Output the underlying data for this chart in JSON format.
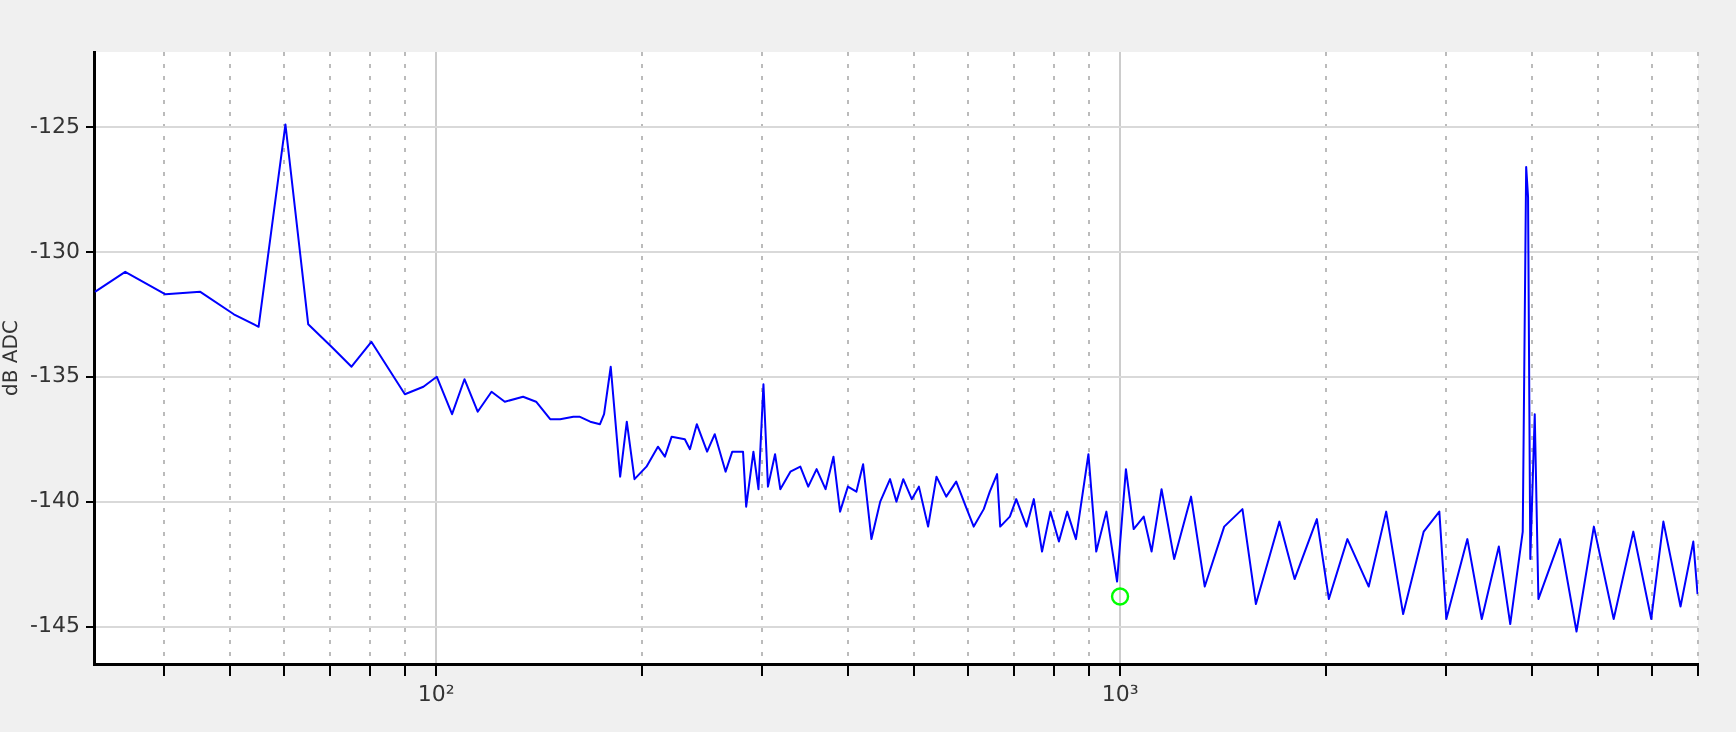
{
  "chart_data": {
    "type": "line",
    "ylabel": "dB ADC",
    "log": "x",
    "grid": true,
    "legend": false,
    "xlim": [
      31.6,
      7000
    ],
    "ylim": [
      -146.5,
      -122
    ],
    "xticks": [
      {
        "value": 40,
        "label": null
      },
      {
        "value": 50,
        "label": null
      },
      {
        "value": 60,
        "label": null
      },
      {
        "value": 70,
        "label": null
      },
      {
        "value": 80,
        "label": null
      },
      {
        "value": 90,
        "label": null
      },
      {
        "value": 100,
        "label": "10²"
      },
      {
        "value": 200,
        "label": null
      },
      {
        "value": 300,
        "label": null
      },
      {
        "value": 400,
        "label": null
      },
      {
        "value": 500,
        "label": null
      },
      {
        "value": 600,
        "label": null
      },
      {
        "value": 700,
        "label": null
      },
      {
        "value": 800,
        "label": null
      },
      {
        "value": 900,
        "label": null
      },
      {
        "value": 1000,
        "label": "10³"
      },
      {
        "value": 2000,
        "label": null
      },
      {
        "value": 3000,
        "label": null
      },
      {
        "value": 4000,
        "label": null
      },
      {
        "value": 5000,
        "label": null
      },
      {
        "value": 6000,
        "label": null
      },
      {
        "value": 7000,
        "label": null
      }
    ],
    "yticks": [
      -145,
      -140,
      -135,
      -130,
      -125
    ],
    "series": [
      {
        "type": "line",
        "color": "#0000ff",
        "marker": "none",
        "x": [
          31.7,
          35.1,
          40.2,
          45.2,
          50.6,
          55,
          60.2,
          65,
          70.3,
          75.2,
          80.4,
          90,
          95.8,
          100.2,
          105.5,
          110,
          115,
          120.5,
          126,
          134,
          140,
          146.8,
          151.8,
          158.7,
          162,
          168,
          173.6,
          176,
          180,
          185.8,
          190,
          195,
          203,
          211,
          216,
          221,
          231,
          235,
          240.5,
          249,
          255.5,
          265,
          271,
          281,
          284,
          291,
          296,
          301,
          305.6,
          313,
          318.6,
          329.6,
          340.8,
          350,
          360,
          371,
          381,
          389.6,
          400,
          411.6,
          421,
          433,
          446,
          461,
          471,
          482,
          496,
          508,
          524,
          539,
          557,
          576,
          595,
          611,
          632,
          645,
          661,
          668,
          690,
          705,
          730,
          748,
          769,
          791,
          814,
          837,
          862,
          899,
          923,
          955,
          990,
          1020,
          1047,
          1083,
          1112,
          1138,
          1150,
          1200,
          1270,
          1330,
          1420,
          1510,
          1580,
          1710,
          1800,
          1940,
          2020,
          2150,
          2310,
          2450,
          2594,
          2780,
          2930,
          3000,
          3220,
          3380,
          3580,
          3720,
          3880,
          3925,
          3950,
          3980,
          4040,
          4090,
          4400,
          4650,
          4930,
          5270,
          5630,
          5980,
          6230,
          6600,
          6890,
          6990
        ],
        "values": [
          -131.6,
          -130.8,
          -131.7,
          -131.6,
          -132.5,
          -133,
          -124.9,
          -132.9,
          -133.8,
          -134.6,
          -133.6,
          -135.7,
          -135.4,
          -135,
          -136.5,
          -135.1,
          -136.4,
          -135.6,
          -136,
          -135.8,
          -136,
          -136.7,
          -136.7,
          -136.6,
          -136.6,
          -136.8,
          -136.9,
          -136.5,
          -134.6,
          -139,
          -136.8,
          -139.1,
          -138.6,
          -137.8,
          -138.2,
          -137.4,
          -137.5,
          -137.9,
          -136.9,
          -138,
          -137.3,
          -138.8,
          -138,
          -138,
          -140.2,
          -138,
          -139.5,
          -135.3,
          -139.4,
          -138.1,
          -139.5,
          -138.8,
          -138.6,
          -139.4,
          -138.7,
          -139.5,
          -138.2,
          -140.4,
          -139.4,
          -139.6,
          -138.5,
          -141.5,
          -140,
          -139.1,
          -140,
          -139.1,
          -139.9,
          -139.4,
          -141,
          -139,
          -139.8,
          -139.2,
          -140.2,
          -141,
          -140.3,
          -139.6,
          -138.9,
          -141,
          -140.6,
          -139.9,
          -141,
          -139.9,
          -142,
          -140.4,
          -141.6,
          -140.4,
          -141.5,
          -138.1,
          -142,
          -140.4,
          -143.2,
          -138.7,
          -141.1,
          -140.6,
          -142,
          -140.3,
          -139.5,
          -142.3,
          -139.8,
          -143.4,
          -141,
          -140.3,
          -144.1,
          -140.8,
          -143.1,
          -140.7,
          -143.9,
          -141.5,
          -143.4,
          -140.4,
          -144.5,
          -141.2,
          -140.4,
          -144.7,
          -141.5,
          -144.7,
          -141.8,
          -144.9,
          -141.2,
          -126.6,
          -127.8,
          -142.3,
          -136.5,
          -143.9,
          -141.5,
          -145.2,
          -141,
          -144.7,
          -141.2,
          -144.7,
          -140.8,
          -144.2,
          -141.6,
          -143.7
        ]
      },
      {
        "type": "scatter",
        "color": "#00ff00",
        "marker": "circle",
        "x": [
          1000
        ],
        "values": [
          -143.8
        ]
      }
    ]
  }
}
